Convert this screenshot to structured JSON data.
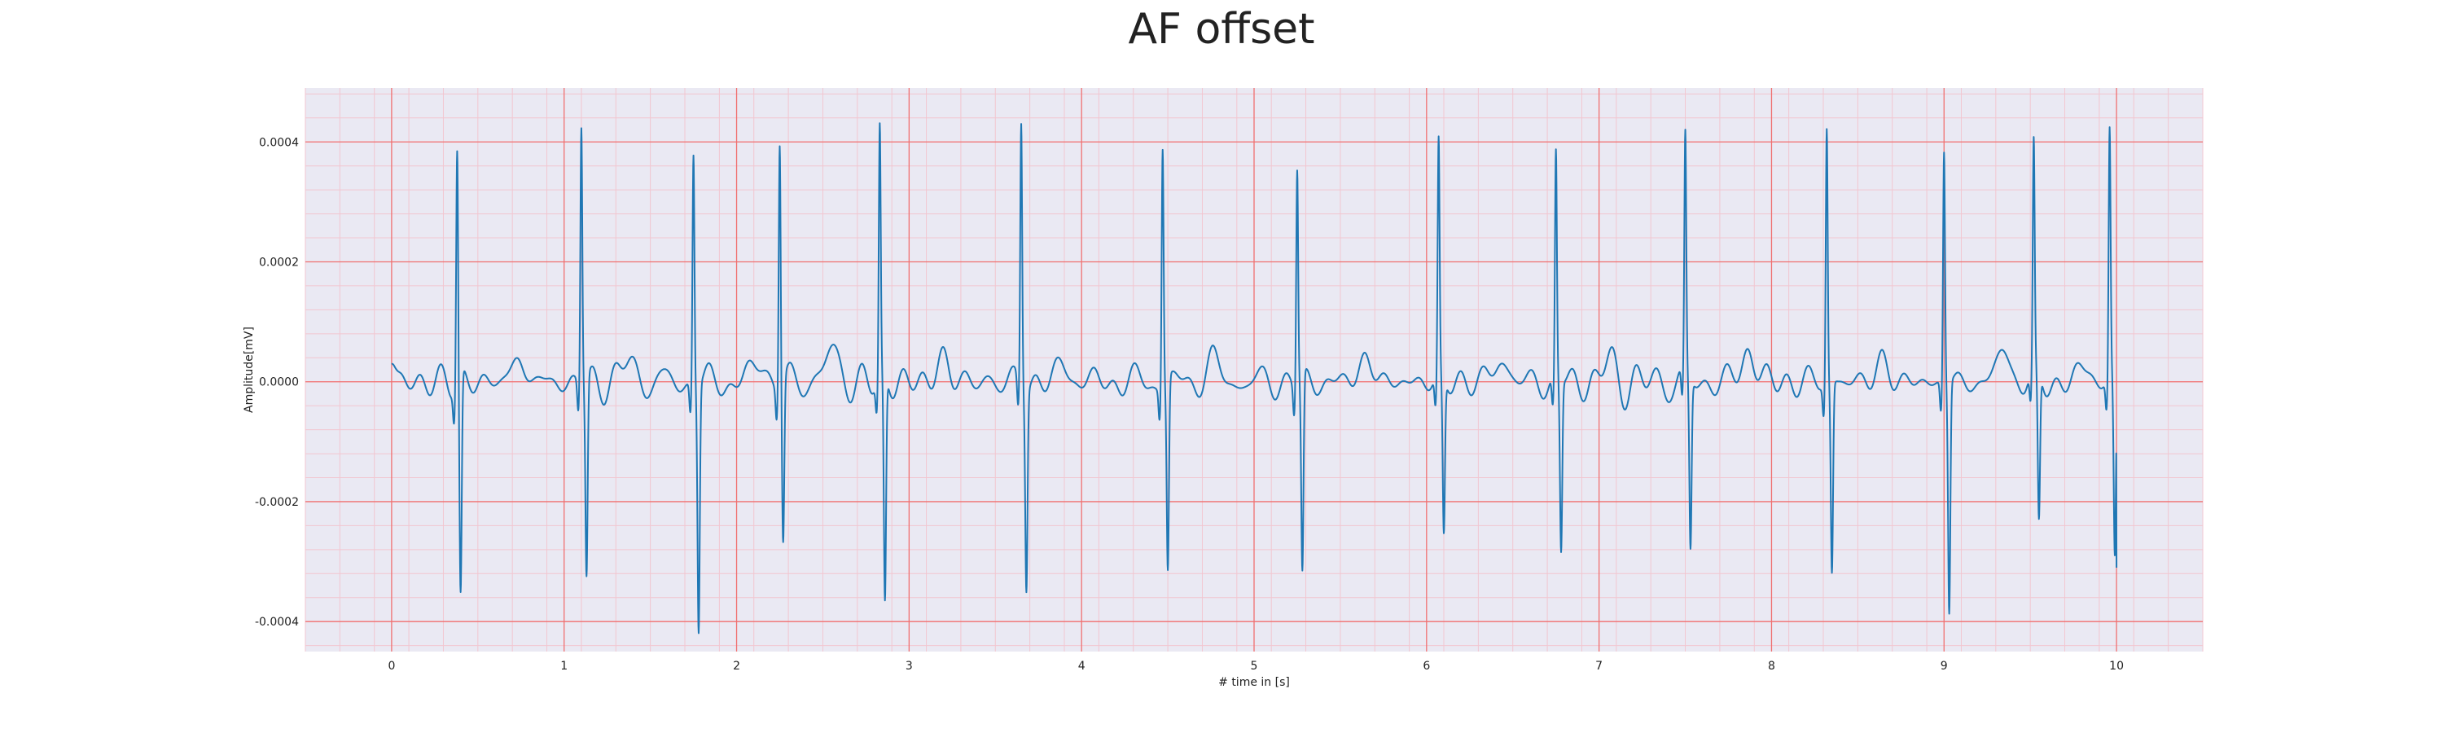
{
  "chart_data": {
    "type": "line",
    "title": "AF offset",
    "xlabel": "# time in [s]",
    "ylabel": "Amplitude[mV]",
    "xlim": [
      -0.5,
      10.5
    ],
    "ylim": [
      -0.00045,
      0.00049
    ],
    "x_ticks": [
      0,
      1,
      2,
      3,
      4,
      5,
      6,
      7,
      8,
      9,
      10
    ],
    "x_tick_labels": [
      "0",
      "1",
      "2",
      "3",
      "4",
      "5",
      "6",
      "7",
      "8",
      "9",
      "10"
    ],
    "y_ticks": [
      -0.0004,
      -0.0002,
      0.0,
      0.0002,
      0.0004
    ],
    "y_tick_labels": [
      "-0.0004",
      "-0.0002",
      "0.0000",
      "0.0002",
      "0.0004"
    ],
    "grid": true,
    "colors": {
      "line": "#1f77b4",
      "background": "#eae9f3",
      "major_grid": "#f07070",
      "minor_grid": "#f2c6d0"
    },
    "series": [
      {
        "name": "",
        "beats": [
          {
            "t": 0.38,
            "peak": 0.00039,
            "trough": -0.00037,
            "s_time": 0.4
          },
          {
            "t": 1.1,
            "peak": 0.00043,
            "trough": -0.00033,
            "s_time": 1.13
          },
          {
            "t": 1.75,
            "peak": 0.000385,
            "trough": -0.00041,
            "s_time": 1.78
          },
          {
            "t": 2.25,
            "peak": 0.00041,
            "trough": -0.00027,
            "s_time": 2.27
          },
          {
            "t": 2.83,
            "peak": 0.000415,
            "trough": -0.00038,
            "s_time": 2.86
          },
          {
            "t": 3.65,
            "peak": 0.00044,
            "trough": -0.00033,
            "s_time": 3.68
          },
          {
            "t": 4.47,
            "peak": 0.0004,
            "trough": -0.00032,
            "s_time": 4.5
          },
          {
            "t": 5.25,
            "peak": 0.00036,
            "trough": -0.00033,
            "s_time": 5.28
          },
          {
            "t": 6.07,
            "peak": 0.00039,
            "trough": -0.00026,
            "s_time": 6.1
          },
          {
            "t": 6.75,
            "peak": 0.000375,
            "trough": -0.000285,
            "s_time": 6.78
          },
          {
            "t": 7.5,
            "peak": 0.000395,
            "trough": -0.000285,
            "s_time": 7.53
          },
          {
            "t": 8.32,
            "peak": 0.000425,
            "trough": -0.00032,
            "s_time": 8.35
          },
          {
            "t": 9.0,
            "peak": 0.000385,
            "trough": -0.000385,
            "s_time": 9.03
          },
          {
            "t": 9.52,
            "peak": 0.000375,
            "trough": -0.00025,
            "s_time": 9.55
          },
          {
            "t": 9.96,
            "peak": 0.00041,
            "trough": -0.00031,
            "s_time": 9.99
          }
        ],
        "t_start": 0.0,
        "t_end": 10.0,
        "start_value": 3e-05,
        "end_value": -0.00031
      }
    ]
  }
}
